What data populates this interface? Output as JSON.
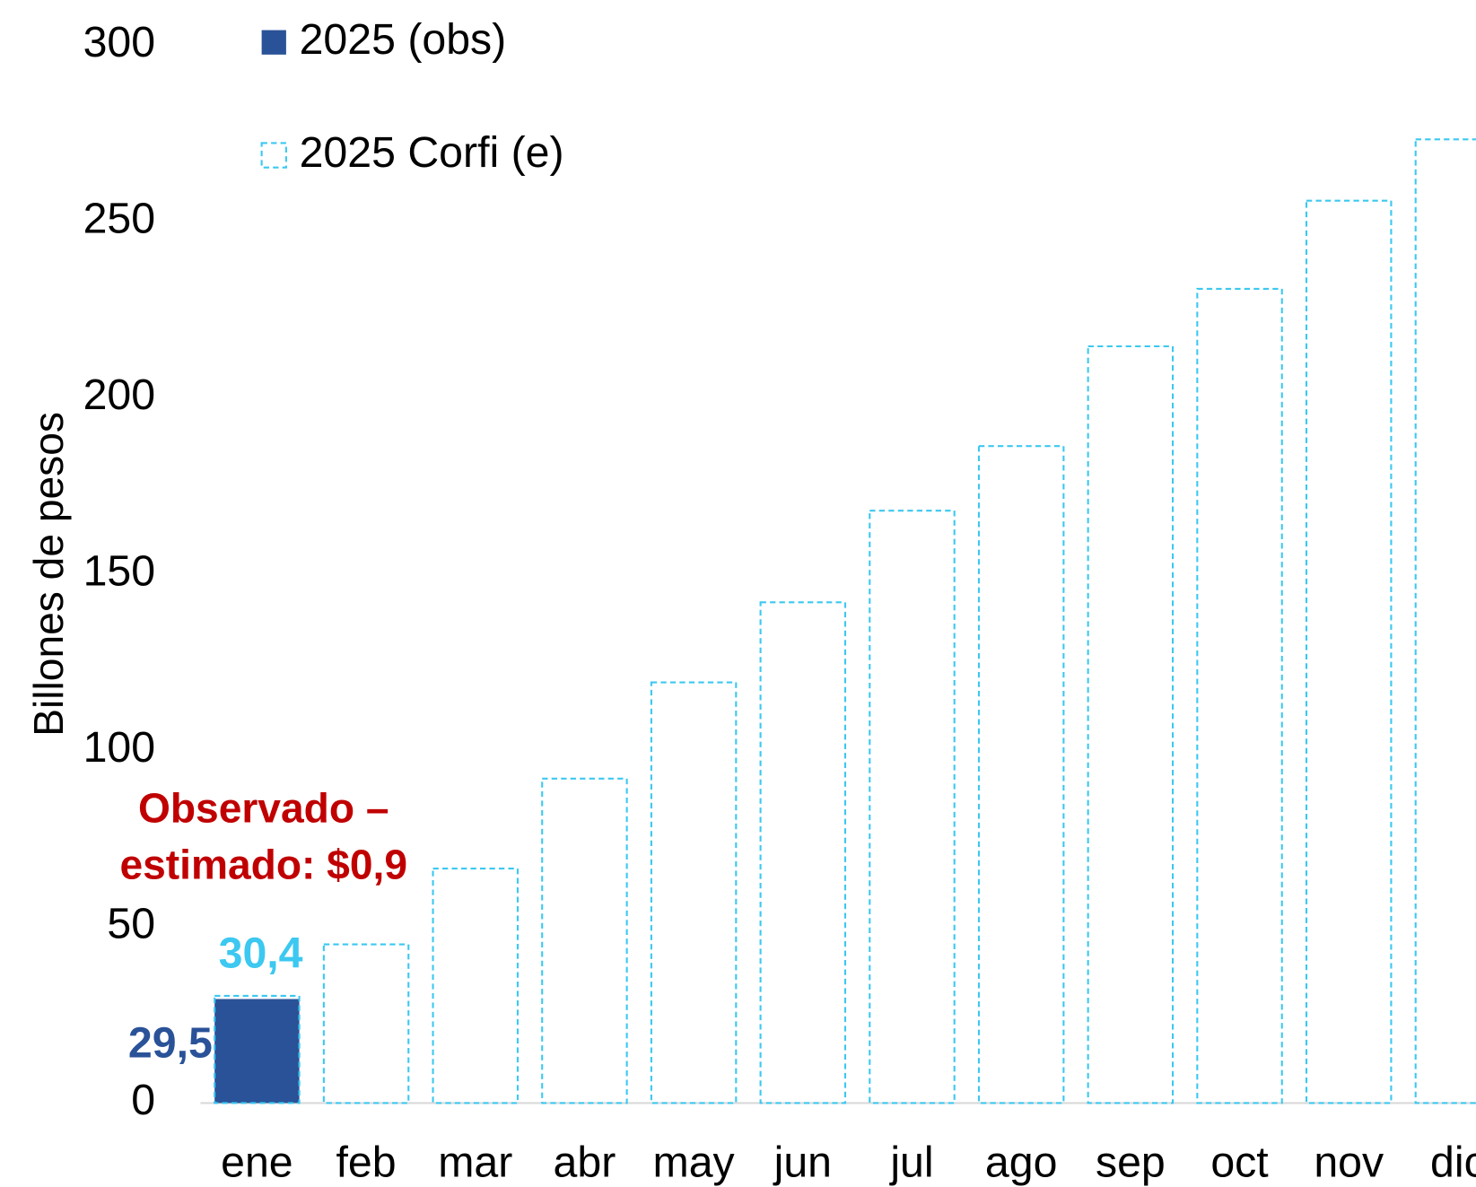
{
  "chart_data": {
    "type": "bar",
    "y_label": "Billones de pesos",
    "categories": [
      "ene",
      "feb",
      "mar",
      "abr",
      "may",
      "jun",
      "jul",
      "ago",
      "sep",
      "oct",
      "nov",
      "dic"
    ],
    "series": [
      {
        "name": "2025 (obs)",
        "color": "#2a5298",
        "style": "solid",
        "values": [
          29.5,
          null,
          null,
          null,
          null,
          null,
          null,
          null,
          null,
          null,
          null,
          null
        ],
        "value_labels": [
          "29,5",
          null,
          null,
          null,
          null,
          null,
          null,
          null,
          null,
          null,
          null,
          null
        ]
      },
      {
        "name": "2025 Corfi (e)",
        "color": "#3cc8f0",
        "style": "dashed",
        "values": [
          30.4,
          45,
          66.5,
          92,
          119.3,
          142,
          168,
          186.3,
          214.6,
          230.9,
          255.9,
          273.3
        ],
        "value_labels": [
          "30,4",
          null,
          null,
          null,
          null,
          null,
          null,
          null,
          null,
          null,
          null,
          null
        ]
      }
    ],
    "annotation": [
      "Observado –",
      "estimado: $0,9"
    ],
    "annotation_color": "#c00000",
    "ylim": [
      0,
      300
    ],
    "yticks": [
      0,
      50,
      100,
      150,
      200,
      250,
      300
    ],
    "grid": false,
    "legend": "top-left"
  }
}
